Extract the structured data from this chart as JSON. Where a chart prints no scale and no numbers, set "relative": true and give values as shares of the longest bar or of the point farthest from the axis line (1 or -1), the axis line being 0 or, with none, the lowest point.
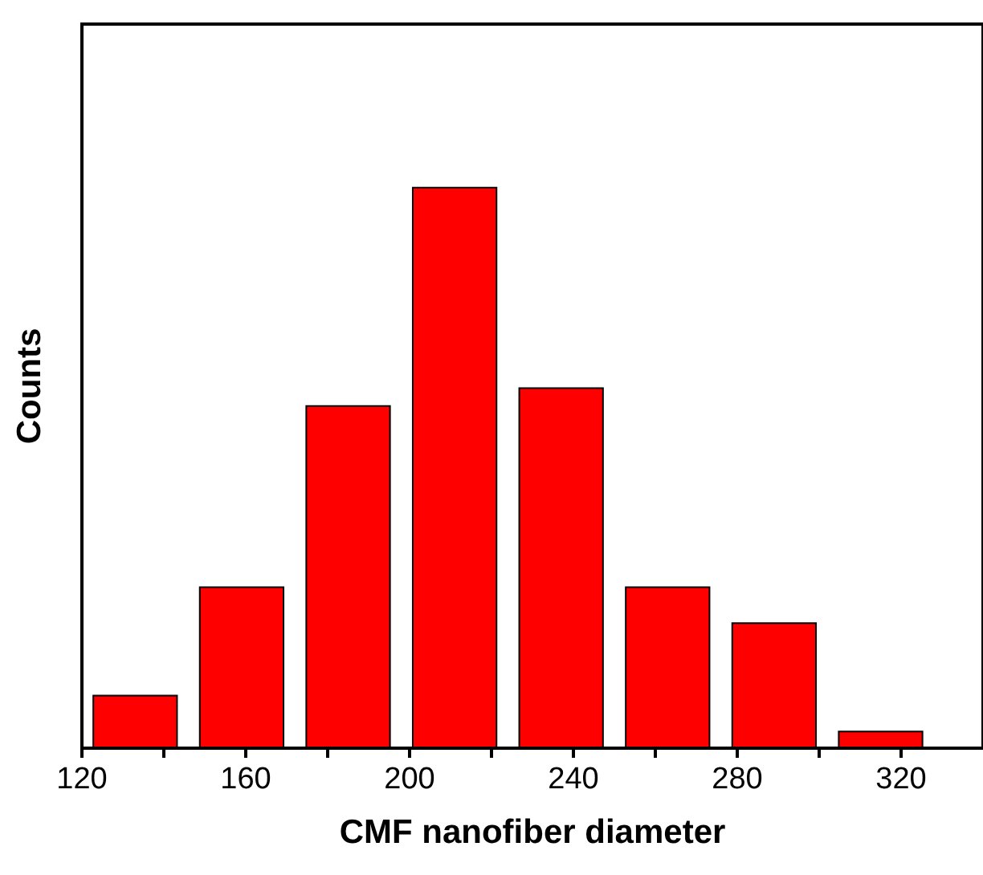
{
  "chart_data": {
    "type": "bar",
    "xlabel": "CMF nanofiber diameter",
    "ylabel": "Counts",
    "relative": true,
    "x": [
      133,
      159,
      185,
      211,
      237,
      263,
      289,
      315
    ],
    "values": [
      0.095,
      0.288,
      0.611,
      1,
      0.643,
      0.288,
      0.224,
      0.031
    ],
    "color": "#ff0000",
    "xlim": [
      120,
      340
    ],
    "xticks": [
      120,
      {
        "value": 140,
        "label": null
      },
      160,
      {
        "value": 180,
        "label": null
      },
      200,
      {
        "value": 220,
        "label": null
      },
      240,
      {
        "value": 260,
        "label": null
      },
      280,
      {
        "value": 300,
        "label": null
      },
      320
    ],
    "grid": false
  }
}
